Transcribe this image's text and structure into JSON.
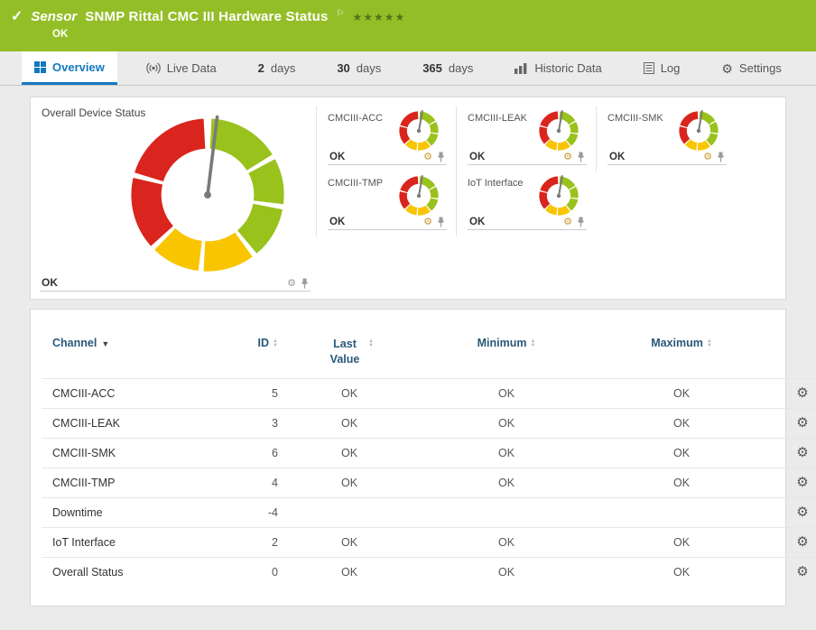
{
  "colors": {
    "header_green": "#94be27",
    "tab_active_blue": "#1379bd",
    "table_header_blue": "#2a5878"
  },
  "icons": {
    "check": "✓",
    "flag": "⚐",
    "stars": "★★★★★",
    "gear": "⚙",
    "sort_up": "▲",
    "sort_down": "▼",
    "sort_active": "▼"
  },
  "header": {
    "type_label": "Sensor",
    "title": "SNMP Rittal CMC III Hardware Status",
    "status": "OK"
  },
  "tabs": {
    "overview": {
      "label": "Overview"
    },
    "live_data": {
      "label": "Live Data"
    },
    "days2": {
      "num": "2",
      "unit": "days"
    },
    "days30": {
      "num": "30",
      "unit": "days"
    },
    "days365": {
      "num": "365",
      "unit": "days"
    },
    "historic": {
      "label": "Historic Data"
    },
    "log": {
      "label": "Log"
    },
    "settings": {
      "label": "Settings"
    }
  },
  "overview_panel": {
    "main_gauge": {
      "title": "Overall Device Status",
      "status": "OK"
    },
    "mini_gauges": [
      {
        "title": "CMCIII-ACC",
        "status": "OK"
      },
      {
        "title": "CMCIII-LEAK",
        "status": "OK"
      },
      {
        "title": "CMCIII-SMK",
        "status": "OK"
      },
      {
        "title": "CMCIII-TMP",
        "status": "OK"
      },
      {
        "title": "IoT Interface",
        "status": "OK"
      }
    ],
    "gauge_colors": {
      "ok": "#99c21d",
      "warning": "#f8c500",
      "error": "#d9251d"
    }
  },
  "channel_table": {
    "columns": {
      "channel": "Channel",
      "id": "ID",
      "last_value": "Last Value",
      "minimum": "Minimum",
      "maximum": "Maximum"
    },
    "rows": [
      {
        "channel": "CMCIII-ACC",
        "id": "5",
        "last_value": "OK",
        "minimum": "OK",
        "maximum": "OK"
      },
      {
        "channel": "CMCIII-LEAK",
        "id": "3",
        "last_value": "OK",
        "minimum": "OK",
        "maximum": "OK"
      },
      {
        "channel": "CMCIII-SMK",
        "id": "6",
        "last_value": "OK",
        "minimum": "OK",
        "maximum": "OK"
      },
      {
        "channel": "CMCIII-TMP",
        "id": "4",
        "last_value": "OK",
        "minimum": "OK",
        "maximum": "OK"
      },
      {
        "channel": "Downtime",
        "id": "-4",
        "last_value": "",
        "minimum": "",
        "maximum": ""
      },
      {
        "channel": "IoT Interface",
        "id": "2",
        "last_value": "OK",
        "minimum": "OK",
        "maximum": "OK"
      },
      {
        "channel": "Overall Status",
        "id": "0",
        "last_value": "OK",
        "minimum": "OK",
        "maximum": "OK"
      }
    ]
  }
}
